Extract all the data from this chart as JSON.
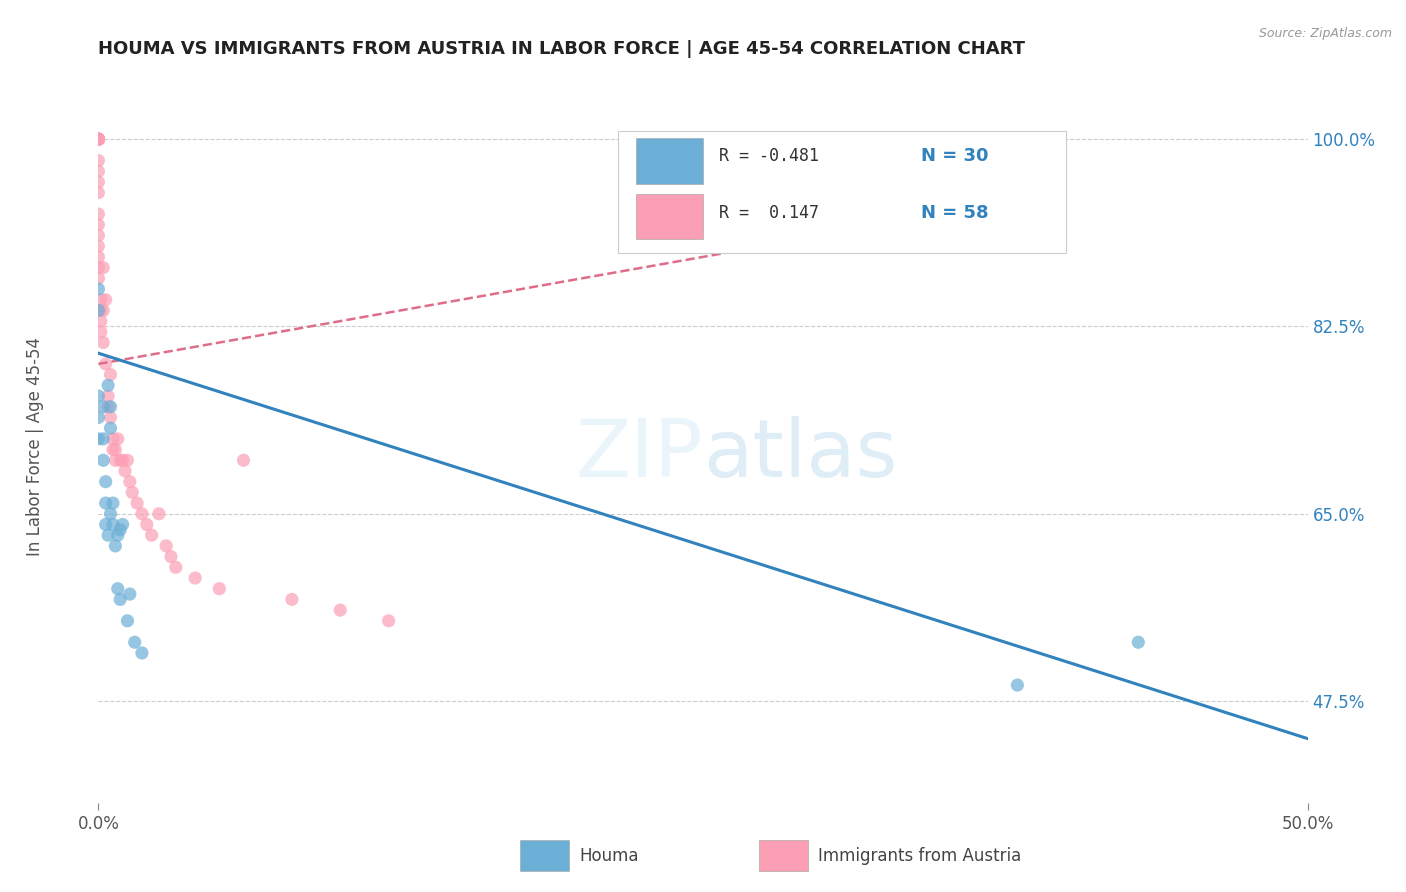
{
  "title": "HOUMA VS IMMIGRANTS FROM AUSTRIA IN LABOR FORCE | AGE 45-54 CORRELATION CHART",
  "source": "Source: ZipAtlas.com",
  "ylabel": "In Labor Force | Age 45-54",
  "ytick_values": [
    47.5,
    65.0,
    82.5,
    100.0
  ],
  "ytick_labels": [
    "47.5%",
    "65.0%",
    "82.5%",
    "100.0%"
  ],
  "xmin": 0.0,
  "xmax": 50.0,
  "ymin": 38.0,
  "ymax": 103.0,
  "watermark": "ZIPatlas",
  "blue_color": "#6baed6",
  "pink_color": "#fc9fb5",
  "blue_line_color": "#3182bd",
  "pink_line_color": "#de6d8a",
  "pink_line_dashed_color": "#de6d8a",
  "houma_x": [
    0.0,
    0.0,
    0.0,
    0.0,
    0.0,
    0.2,
    0.2,
    0.2,
    0.3,
    0.3,
    0.3,
    0.4,
    0.4,
    0.5,
    0.5,
    0.5,
    0.6,
    0.6,
    0.7,
    0.8,
    0.8,
    0.9,
    0.9,
    1.0,
    1.2,
    1.3,
    1.5,
    1.8,
    38.0,
    43.0
  ],
  "houma_y": [
    86.0,
    84.0,
    76.0,
    74.0,
    72.0,
    75.0,
    72.0,
    70.0,
    68.0,
    66.0,
    64.0,
    77.0,
    63.0,
    75.0,
    73.0,
    65.0,
    66.0,
    64.0,
    62.0,
    63.0,
    58.0,
    63.5,
    57.0,
    64.0,
    55.0,
    57.5,
    53.0,
    52.0,
    49.0,
    53.0
  ],
  "houma_trendline_x": [
    0.0,
    50.0
  ],
  "houma_trendline_y": [
    80.0,
    44.0
  ],
  "austria_x": [
    0.0,
    0.0,
    0.0,
    0.0,
    0.0,
    0.0,
    0.0,
    0.0,
    0.0,
    0.0,
    0.0,
    0.0,
    0.0,
    0.0,
    0.0,
    0.0,
    0.0,
    0.0,
    0.0,
    0.0,
    0.1,
    0.1,
    0.1,
    0.1,
    0.2,
    0.2,
    0.2,
    0.3,
    0.3,
    0.4,
    0.4,
    0.5,
    0.5,
    0.6,
    0.6,
    0.7,
    0.7,
    0.8,
    0.9,
    1.0,
    1.1,
    1.2,
    1.3,
    1.4,
    1.6,
    1.8,
    2.0,
    2.2,
    2.5,
    2.8,
    3.0,
    3.2,
    4.0,
    5.0,
    6.0,
    8.0,
    10.0,
    12.0
  ],
  "austria_y": [
    100.0,
    100.0,
    100.0,
    100.0,
    100.0,
    100.0,
    100.0,
    100.0,
    100.0,
    98.0,
    97.0,
    96.0,
    95.0,
    93.0,
    92.0,
    91.0,
    90.0,
    89.0,
    88.0,
    87.0,
    85.0,
    84.0,
    83.0,
    82.0,
    88.0,
    84.0,
    81.0,
    79.0,
    85.0,
    76.0,
    75.0,
    78.0,
    74.0,
    72.0,
    71.0,
    71.0,
    70.0,
    72.0,
    70.0,
    70.0,
    69.0,
    70.0,
    68.0,
    67.0,
    66.0,
    65.0,
    64.0,
    63.0,
    65.0,
    62.0,
    61.0,
    60.0,
    59.0,
    58.0,
    70.0,
    57.0,
    56.0,
    55.0
  ],
  "austria_trendline_x": [
    0.0,
    35.0
  ],
  "austria_trendline_y": [
    79.0,
    93.0
  ],
  "legend_label1": "Houma",
  "legend_label2": "Immigrants from Austria"
}
